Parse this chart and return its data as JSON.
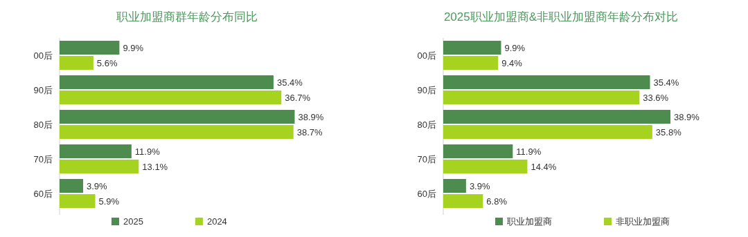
{
  "chart_data": [
    {
      "type": "bar",
      "orientation": "horizontal",
      "title": "职业加盟商群年龄分布同比",
      "categories": [
        "00后",
        "90后",
        "80后",
        "70后",
        "60后"
      ],
      "legend": "bottom",
      "series": [
        {
          "name": "2025",
          "color": "#4e8b4f",
          "values": [
            9.9,
            35.4,
            38.9,
            11.9,
            3.9
          ],
          "value_labels": [
            "9.9%",
            "35.4%",
            "38.9%",
            "11.9%",
            "3.9%"
          ]
        },
        {
          "name": "2024",
          "color": "#a5d31f",
          "values": [
            5.6,
            36.7,
            38.7,
            13.1,
            5.9
          ],
          "value_labels": [
            "5.6%",
            "36.7%",
            "38.7%",
            "13.1%",
            "5.9%"
          ]
        }
      ]
    },
    {
      "type": "bar",
      "orientation": "horizontal",
      "title": "2025职业加盟商&非职业加盟商年龄分布对比",
      "categories": [
        "00后",
        "90后",
        "80后",
        "70后",
        "60后"
      ],
      "legend": "bottom",
      "series": [
        {
          "name": "职业加盟商",
          "color": "#4e8b4f",
          "values": [
            9.9,
            35.4,
            38.9,
            11.9,
            3.9
          ],
          "value_labels": [
            "9.9%",
            "35.4%",
            "38.9%",
            "11.9%",
            "3.9%"
          ]
        },
        {
          "name": "非职业加盟商",
          "color": "#a5d31f",
          "values": [
            9.4,
            33.6,
            35.8,
            14.4,
            6.8
          ],
          "value_labels": [
            "9.4%",
            "33.6%",
            "35.8%",
            "14.4%",
            "6.8%"
          ]
        }
      ]
    }
  ]
}
